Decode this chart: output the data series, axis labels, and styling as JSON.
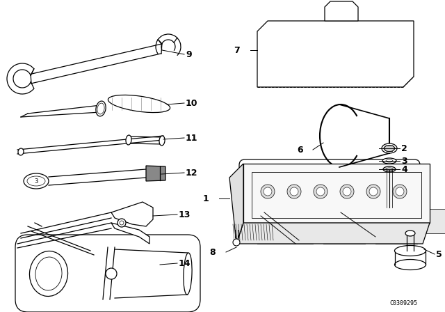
{
  "background_color": "#ffffff",
  "line_color": "#000000",
  "part_number_text": "C0309295",
  "figsize": [
    6.4,
    4.48
  ],
  "dpi": 100,
  "label_fontsize": 9,
  "label_bold": true
}
